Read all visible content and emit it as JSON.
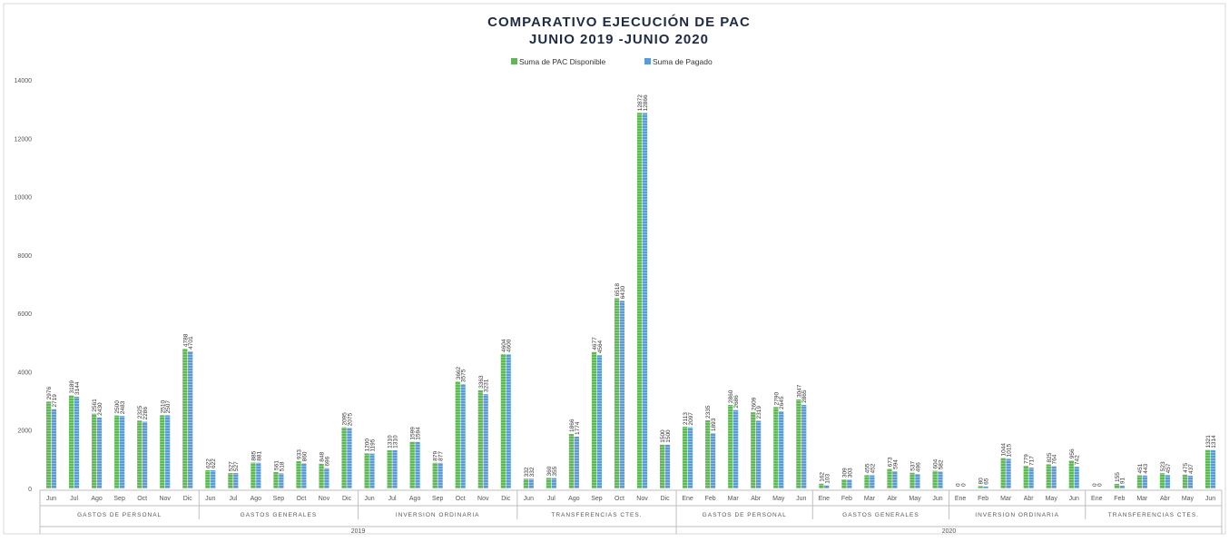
{
  "chart_data": {
    "type": "bar",
    "title_line1": "COMPARATIVO EJECUCIÓN DE PAC",
    "title_line2": "JUNIO 2019 -JUNIO 2020",
    "ylim": [
      0,
      14000
    ],
    "yticks": [
      "0",
      "2000",
      "4000",
      "6000",
      "8000",
      "10000",
      "12000",
      "14000"
    ],
    "series": [
      {
        "name": "Suma de PAC Disponible",
        "color": "#5fb855"
      },
      {
        "name": "Suma de Pagado",
        "color": "#5b9bd5"
      }
    ],
    "groups": [
      {
        "year": "2019",
        "label": "GASTOS DE PERSONAL",
        "categories": [
          "Jun",
          "Jul",
          "Ago",
          "Sep",
          "Oct",
          "Nov",
          "Dic"
        ],
        "disponible": [
          2976,
          3189,
          2561,
          2500,
          2325,
          2510,
          4788
        ],
        "pagado": [
          2719,
          3144,
          2430,
          2483,
          2286,
          2507,
          4701
        ]
      },
      {
        "year": "2019",
        "label": "GASTOS GENERALES",
        "categories": [
          "Jun",
          "Jul",
          "Ago",
          "Sep",
          "Oct",
          "Nov",
          "Dic"
        ],
        "disponible": [
          622,
          527,
          885,
          561,
          933,
          848,
          2095
        ],
        "pagado": [
          622,
          527,
          881,
          518,
          860,
          696,
          2075
        ]
      },
      {
        "year": "2019",
        "label": "INVERSION ORDINARIA",
        "categories": [
          "Jun",
          "Jul",
          "Ago",
          "Sep",
          "Oct",
          "Nov",
          "Dic"
        ],
        "disponible": [
          1200,
          1310,
          1599,
          879,
          3662,
          3363,
          4604
        ],
        "pagado": [
          1195,
          1310,
          1594,
          877,
          3575,
          3231,
          4600
        ]
      },
      {
        "year": "2019",
        "label": "TRANSFERENCIAS CTES.",
        "categories": [
          "Jun",
          "Jul",
          "Ago",
          "Sep",
          "Oct",
          "Nov",
          "Dic"
        ],
        "disponible": [
          332,
          360,
          1866,
          4677,
          6518,
          12872,
          1500
        ],
        "pagado": [
          332,
          355,
          1774,
          4564,
          6430,
          12866,
          1500
        ]
      },
      {
        "year": "2020",
        "label": "GASTOS DE PERSONAL",
        "categories": [
          "Ene",
          "Feb",
          "Mar",
          "Abr",
          "May",
          "Jun"
        ],
        "disponible": [
          2113,
          2335,
          2860,
          2609,
          2790,
          3047
        ],
        "pagado": [
          2097,
          1893,
          2686,
          2319,
          2645,
          2865
        ]
      },
      {
        "year": "2020",
        "label": "GASTOS GENERALES",
        "categories": [
          "Ene",
          "Feb",
          "Mar",
          "Abr",
          "May",
          "Jun"
        ],
        "disponible": [
          162,
          309,
          455,
          673,
          537,
          604
        ],
        "pagado": [
          103,
          303,
          452,
          594,
          496,
          582
        ]
      },
      {
        "year": "2020",
        "label": "INVERSION ORDINARIA",
        "categories": [
          "Ene",
          "Feb",
          "Mar",
          "Abr",
          "May",
          "Jun"
        ],
        "disponible": [
          0,
          80,
          1044,
          779,
          825,
          956
        ],
        "pagado": [
          0,
          65,
          1015,
          717,
          764,
          742
        ]
      },
      {
        "year": "2020",
        "label": "TRANSFERENCIAS CTES.",
        "categories": [
          "Ene",
          "Feb",
          "Mar",
          "Abr",
          "May",
          "Jun"
        ],
        "disponible": [
          0,
          155,
          451,
          523,
          475,
          1321
        ],
        "pagado": [
          0,
          91,
          443,
          457,
          437,
          1314
        ]
      }
    ],
    "years": [
      "2019",
      "2020"
    ]
  }
}
